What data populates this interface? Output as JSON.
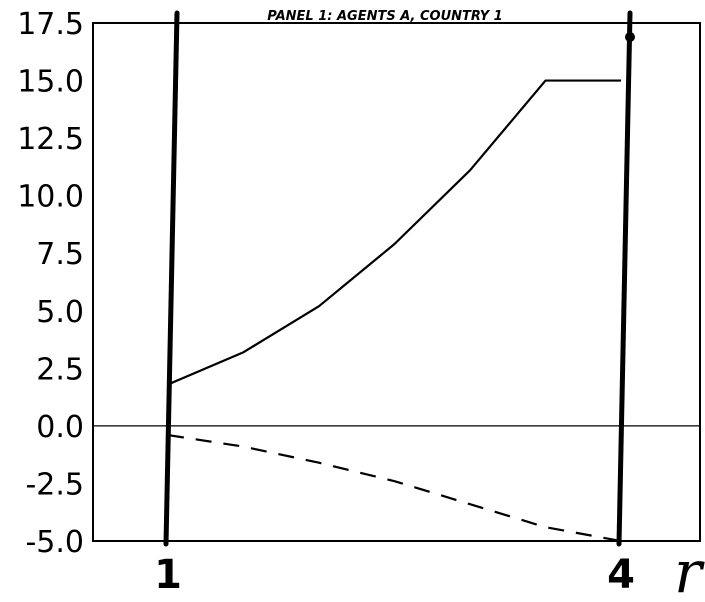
{
  "chart_data": {
    "type": "line",
    "title": "PANEL 1: AGENTS A, COUNTRY 1",
    "xlabel": "r",
    "ylabel": "",
    "ylim": [
      -5.0,
      17.5
    ],
    "xlim": [
      1,
      4
    ],
    "yticks": [
      "-5.0",
      "-2.5",
      "0.0",
      "2.5",
      "5.0",
      "7.5",
      "10.0",
      "12.5",
      "15.0",
      "17.5"
    ],
    "xticks": [
      "1",
      "4"
    ],
    "grid": false,
    "legend": "none",
    "zero_line": true,
    "vertical_lines": [
      1,
      4
    ],
    "series": [
      {
        "style": "solid",
        "x": [
          1.0,
          1.5,
          2.0,
          2.5,
          3.0,
          3.5,
          4.0
        ],
        "y": [
          1.8,
          3.2,
          5.2,
          7.9,
          11.1,
          15.0,
          15.0
        ]
      },
      {
        "style": "dashed",
        "x": [
          1.0,
          1.5,
          2.0,
          2.5,
          3.0,
          3.5,
          4.0
        ],
        "y": [
          -0.4,
          -0.9,
          -1.6,
          -2.4,
          -3.4,
          -4.4,
          -5.0
        ]
      }
    ]
  }
}
